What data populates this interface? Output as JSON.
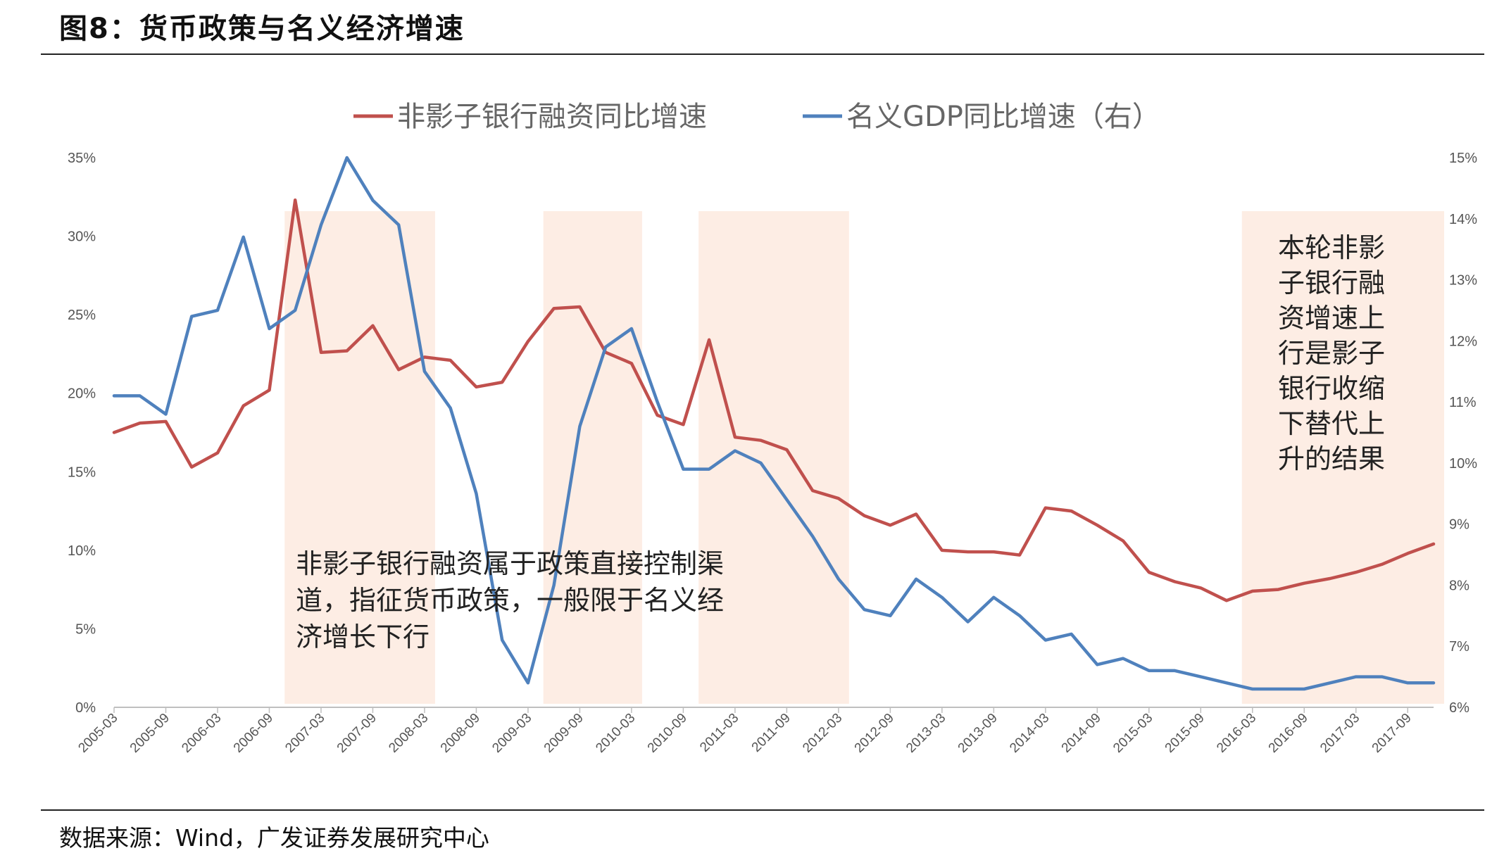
{
  "page": {
    "title": "图8：货币政策与名义经济增速",
    "source": "数据来源：Wind，广发证券发展研究中心"
  },
  "chart_data": {
    "type": "line",
    "title": "",
    "legend": {
      "placement": "top",
      "entries": [
        "非影子银行融资同比增速",
        "名义GDP同比增速（右）"
      ]
    },
    "x_tick_labels": [
      "2005-03",
      "2005-09",
      "2006-03",
      "2006-09",
      "2007-03",
      "2007-09",
      "2008-03",
      "2008-09",
      "2009-03",
      "2009-09",
      "2010-03",
      "2010-09",
      "2011-03",
      "2011-09",
      "2012-03",
      "2012-09",
      "2013-03",
      "2013-09",
      "2014-03",
      "2014-09",
      "2015-03",
      "2015-09",
      "2016-03",
      "2016-09",
      "2017-03",
      "2017-09"
    ],
    "y_left": {
      "min": 0,
      "max": 35,
      "step": 5,
      "unit": "%",
      "tick_labels": [
        "0%",
        "5%",
        "10%",
        "15%",
        "20%",
        "25%",
        "30%",
        "35%"
      ]
    },
    "y_right": {
      "min": 6,
      "max": 15,
      "step": 1,
      "unit": "%",
      "tick_labels": [
        "6%",
        "7%",
        "8%",
        "9%",
        "10%",
        "11%",
        "12%",
        "13%",
        "14%",
        "15%"
      ]
    },
    "x": [
      "2005-03",
      "2005-06",
      "2005-09",
      "2005-12",
      "2006-03",
      "2006-06",
      "2006-09",
      "2006-12",
      "2007-03",
      "2007-06",
      "2007-09",
      "2007-12",
      "2008-03",
      "2008-06",
      "2008-09",
      "2008-12",
      "2009-03",
      "2009-06",
      "2009-09",
      "2009-12",
      "2010-03",
      "2010-06",
      "2010-09",
      "2010-12",
      "2011-03",
      "2011-06",
      "2011-09",
      "2011-12",
      "2012-03",
      "2012-06",
      "2012-09",
      "2012-12",
      "2013-03",
      "2013-06",
      "2013-09",
      "2013-12",
      "2014-03",
      "2014-06",
      "2014-09",
      "2014-12",
      "2015-03",
      "2015-06",
      "2015-09",
      "2015-12",
      "2016-03",
      "2016-06",
      "2016-09",
      "2016-12",
      "2017-03",
      "2017-06",
      "2017-09",
      "2017-12"
    ],
    "series": [
      {
        "name": "非影子银行融资同比增速",
        "axis": "left",
        "color": "#C0504D",
        "values": [
          17.5,
          18.1,
          18.2,
          15.3,
          16.2,
          19.2,
          20.2,
          32.3,
          22.6,
          22.7,
          24.3,
          21.5,
          22.3,
          22.1,
          20.4,
          20.7,
          23.3,
          25.4,
          25.5,
          22.6,
          21.9,
          18.6,
          18.0,
          23.4,
          17.2,
          17.0,
          16.4,
          13.8,
          13.3,
          12.2,
          11.6,
          12.3,
          10.0,
          9.9,
          9.9,
          9.7,
          12.7,
          12.5,
          11.6,
          10.6,
          8.6,
          8.0,
          7.6,
          6.8,
          7.4,
          7.5,
          7.9,
          8.2,
          8.6,
          9.1,
          9.8,
          10.4
        ]
      },
      {
        "name": "名义GDP同比增速（右）",
        "axis": "right",
        "color": "#4F81BD",
        "values": [
          11.1,
          11.1,
          10.8,
          12.4,
          12.5,
          13.7,
          12.2,
          12.5,
          13.9,
          15.0,
          14.3,
          13.9,
          11.5,
          10.9,
          9.5,
          7.1,
          6.4,
          8.0,
          10.6,
          11.9,
          12.2,
          11.0,
          9.9,
          9.9,
          10.2,
          10.0,
          9.4,
          8.8,
          8.1,
          7.6,
          7.5,
          8.1,
          7.8,
          7.4,
          7.8,
          7.5,
          7.1,
          7.2,
          6.7,
          6.8,
          6.6,
          6.6,
          6.5,
          6.4,
          6.3,
          6.3,
          6.3,
          6.4,
          6.5,
          6.5,
          6.4,
          6.4
        ]
      }
    ],
    "shaded_periods": [
      [
        "2006-12",
        "2008-03"
      ],
      [
        "2009-06",
        "2010-03"
      ],
      [
        "2010-12",
        "2012-03"
      ],
      [
        "2016-03",
        "2017-12"
      ]
    ],
    "annotations": [
      {
        "lines": [
          "非影子银行融资属于政策直接控制渠",
          "道，指征货币政策，一般限于名义经",
          "济增长下行"
        ]
      },
      {
        "lines": [
          "本轮非影",
          "子银行融",
          "资增速上",
          "行是影子",
          "银行收缩",
          "下替代上",
          "升的结果"
        ]
      }
    ],
    "grid": false
  }
}
